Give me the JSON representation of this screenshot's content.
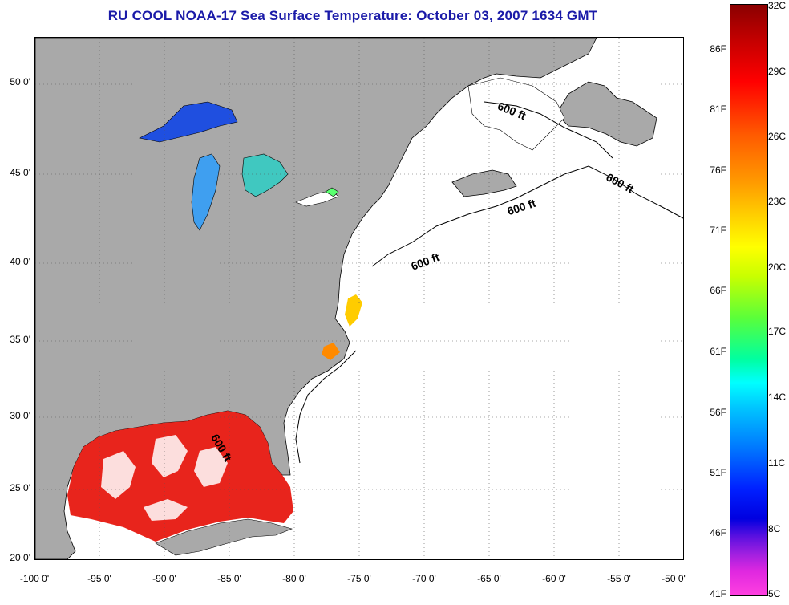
{
  "title": "RU COOL  NOAA-17  Sea Surface Temperature:  October 03, 2007 1634 GMT",
  "axes": {
    "lat_labels": [
      "50 0'",
      "45 0'",
      "40 0'",
      "35 0'",
      "30 0'",
      "25 0'",
      "20 0'"
    ],
    "lon_labels": [
      "-100 0'",
      "-95 0'",
      "-90 0'",
      "-85 0'",
      "-80 0'",
      "-75 0'",
      "-70 0'",
      "-65 0'",
      "-60 0'",
      "-55 0'",
      "-50 0'"
    ]
  },
  "contour_labels": [
    "600 ft",
    "600 ft",
    "600 ft",
    "600 ft",
    "600 ft"
  ],
  "colorbar": {
    "fahrenheit": [
      "86F",
      "81F",
      "76F",
      "71F",
      "66F",
      "61F",
      "56F",
      "51F",
      "46F",
      "41F"
    ],
    "celsius": [
      "32C",
      "29C",
      "26C",
      "23C",
      "20C",
      "17C",
      "14C",
      "11C",
      "8C",
      "5C"
    ]
  },
  "colors": {
    "land": "#a9a9a9",
    "ocean": "#ffffff",
    "title": "#1a1aa8"
  }
}
